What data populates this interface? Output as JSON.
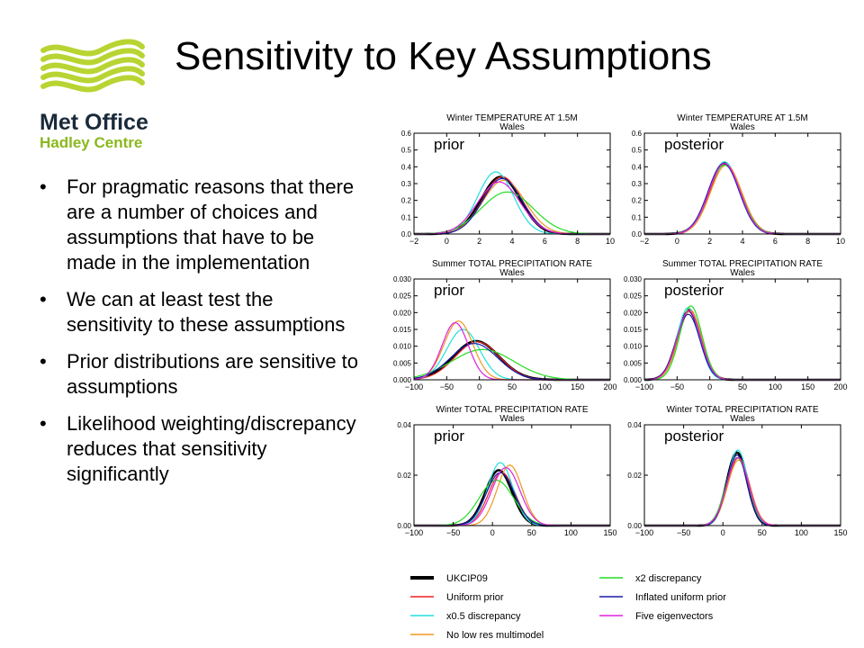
{
  "slide": {
    "title": "Sensitivity to Key Assumptions",
    "logo": {
      "line1": "Met Office",
      "line2": "Hadley Centre",
      "wave_color": "#b8d432",
      "text_color": "#1a2a3a",
      "sub_color": "#8ab81e"
    },
    "bullets": [
      "For pragmatic reasons that there are a number of choices and assumptions that have to be made in the implementation",
      "We can at least test the sensitivity to these assumptions",
      "Prior distributions are sensitive to assumptions",
      "Likelihood weighting/discrepancy reduces that sensitivity significantly"
    ]
  },
  "legend": [
    {
      "label": "UKCIP09",
      "color": "#000000",
      "bold": true
    },
    {
      "label": "x2 discrepancy",
      "color": "#22dd22"
    },
    {
      "label": "Uniform prior",
      "color": "#ee2222"
    },
    {
      "label": "Inflated uniform prior",
      "color": "#1a1aaa"
    },
    {
      "label": "x0.5 discrepancy",
      "color": "#22dddd"
    },
    {
      "label": "Five eigenvectors",
      "color": "#dd22dd"
    },
    {
      "label": "No low res multimodel",
      "color": "#ee9922"
    }
  ],
  "chart_data": [
    {
      "type": "line",
      "panel_label": "prior",
      "title": "Winter TEMPERATURE AT 1.5M",
      "subtitle": "Wales",
      "xlim": [
        -2,
        10
      ],
      "ylim": [
        0,
        0.6
      ],
      "xticks": [
        "−2",
        "0",
        "2",
        "4",
        "6",
        "8",
        "10"
      ],
      "yticks": [
        "0.0",
        "0.1",
        "0.2",
        "0.3",
        "0.4",
        "0.5",
        "0.6"
      ],
      "series": [
        {
          "name": "UKCIP09",
          "mean": 3.3,
          "sd": 1.2,
          "amp": 0.34
        },
        {
          "name": "Uniform prior",
          "mean": 3.4,
          "sd": 1.2,
          "amp": 0.34
        },
        {
          "name": "x0.5 discrepancy",
          "mean": 3.0,
          "sd": 1.1,
          "amp": 0.37
        },
        {
          "name": "No low res multimodel",
          "mean": 3.5,
          "sd": 1.3,
          "amp": 0.32
        },
        {
          "name": "x2 discrepancy",
          "mean": 3.7,
          "sd": 1.6,
          "amp": 0.25
        },
        {
          "name": "Inflated uniform prior",
          "mean": 3.4,
          "sd": 1.2,
          "amp": 0.33
        },
        {
          "name": "Five eigenvectors",
          "mean": 3.2,
          "sd": 1.3,
          "amp": 0.31
        }
      ]
    },
    {
      "type": "line",
      "panel_label": "posterior",
      "title": "Winter TEMPERATURE AT 1.5M",
      "subtitle": "Wales",
      "xlim": [
        -2,
        10
      ],
      "ylim": [
        0,
        0.6
      ],
      "xticks": [
        "−2",
        "0",
        "2",
        "4",
        "6",
        "8",
        "10"
      ],
      "yticks": [
        "0.0",
        "0.1",
        "0.2",
        "0.3",
        "0.4",
        "0.5",
        "0.6"
      ],
      "series": [
        {
          "name": "UKCIP09",
          "mean": 2.9,
          "sd": 0.95,
          "amp": 0.42
        },
        {
          "name": "Uniform prior",
          "mean": 2.95,
          "sd": 0.95,
          "amp": 0.42
        },
        {
          "name": "x0.5 discrepancy",
          "mean": 2.9,
          "sd": 0.93,
          "amp": 0.43
        },
        {
          "name": "No low res multimodel",
          "mean": 3.0,
          "sd": 0.96,
          "amp": 0.41
        },
        {
          "name": "x2 discrepancy",
          "mean": 2.9,
          "sd": 0.98,
          "amp": 0.41
        },
        {
          "name": "Inflated uniform prior",
          "mean": 2.85,
          "sd": 0.95,
          "amp": 0.42
        },
        {
          "name": "Five eigenvectors",
          "mean": 2.9,
          "sd": 0.95,
          "amp": 0.42
        }
      ]
    },
    {
      "type": "line",
      "panel_label": "prior",
      "title": "Summer TOTAL PRECIPITATION RATE",
      "subtitle": "Wales",
      "xlim": [
        -100,
        200
      ],
      "ylim": [
        0,
        0.03
      ],
      "xticks": [
        "−100",
        "−50",
        "0",
        "50",
        "100",
        "150",
        "200"
      ],
      "yticks": [
        "0.000",
        "0.005",
        "0.010",
        "0.015",
        "0.020",
        "0.025",
        "0.030"
      ],
      "series": [
        {
          "name": "UKCIP09",
          "mean": -5,
          "sd": 35,
          "amp": 0.0115
        },
        {
          "name": "Uniform prior",
          "mean": -3,
          "sd": 34,
          "amp": 0.0113
        },
        {
          "name": "x0.5 discrepancy",
          "mean": -25,
          "sd": 25,
          "amp": 0.015
        },
        {
          "name": "No low res multimodel",
          "mean": -32,
          "sd": 22,
          "amp": 0.0175
        },
        {
          "name": "x2 discrepancy",
          "mean": 5,
          "sd": 48,
          "amp": 0.009
        },
        {
          "name": "Inflated uniform prior",
          "mean": -8,
          "sd": 36,
          "amp": 0.0108
        },
        {
          "name": "Five eigenvectors",
          "mean": -37,
          "sd": 20,
          "amp": 0.017
        }
      ]
    },
    {
      "type": "line",
      "panel_label": "posterior",
      "title": "Summer TOTAL PRECIPITATION RATE",
      "subtitle": "Wales",
      "xlim": [
        -100,
        200
      ],
      "ylim": [
        0,
        0.03
      ],
      "xticks": [
        "−100",
        "−50",
        "0",
        "50",
        "100",
        "150",
        "200"
      ],
      "yticks": [
        "0.000",
        "0.005",
        "0.010",
        "0.015",
        "0.020",
        "0.025",
        "0.030"
      ],
      "series": [
        {
          "name": "UKCIP09",
          "mean": -32,
          "sd": 18,
          "amp": 0.0205
        },
        {
          "name": "Uniform prior",
          "mean": -31,
          "sd": 18,
          "amp": 0.021
        },
        {
          "name": "x0.5 discrepancy",
          "mean": -33,
          "sd": 17,
          "amp": 0.0215
        },
        {
          "name": "No low res multimodel",
          "mean": -30,
          "sd": 18,
          "amp": 0.0205
        },
        {
          "name": "x2 discrepancy",
          "mean": -29,
          "sd": 17,
          "amp": 0.022
        },
        {
          "name": "Inflated uniform prior",
          "mean": -33,
          "sd": 18,
          "amp": 0.0195
        },
        {
          "name": "Five eigenvectors",
          "mean": -32,
          "sd": 18,
          "amp": 0.0205
        }
      ]
    },
    {
      "type": "line",
      "panel_label": "prior",
      "title": "Winter TOTAL PRECIPITATION RATE",
      "subtitle": "Wales",
      "xlim": [
        -100,
        150
      ],
      "ylim": [
        0,
        0.04
      ],
      "xticks": [
        "−100",
        "−50",
        "0",
        "50",
        "100",
        "150"
      ],
      "yticks": [
        "0.00",
        "0.02",
        "0.04"
      ],
      "series": [
        {
          "name": "UKCIP09",
          "mean": 8,
          "sd": 17,
          "amp": 0.022
        },
        {
          "name": "Uniform prior",
          "mean": 12,
          "sd": 17,
          "amp": 0.021
        },
        {
          "name": "x0.5 discrepancy",
          "mean": 10,
          "sd": 16,
          "amp": 0.025
        },
        {
          "name": "No low res multimodel",
          "mean": 22,
          "sd": 16,
          "amp": 0.024
        },
        {
          "name": "x2 discrepancy",
          "mean": 5,
          "sd": 22,
          "amp": 0.018
        },
        {
          "name": "Inflated uniform prior",
          "mean": 10,
          "sd": 18,
          "amp": 0.021
        },
        {
          "name": "Five eigenvectors",
          "mean": 17,
          "sd": 18,
          "amp": 0.023
        }
      ]
    },
    {
      "type": "line",
      "panel_label": "posterior",
      "title": "Winter TOTAL PRECIPITATION RATE",
      "subtitle": "Wales",
      "xlim": [
        -100,
        150
      ],
      "ylim": [
        0,
        0.04
      ],
      "xticks": [
        "−100",
        "−50",
        "0",
        "50",
        "100",
        "150"
      ],
      "yticks": [
        "0.00",
        "0.02",
        "0.04"
      ],
      "series": [
        {
          "name": "UKCIP09",
          "mean": 18,
          "sd": 13,
          "amp": 0.029
        },
        {
          "name": "Uniform prior",
          "mean": 20,
          "sd": 14,
          "amp": 0.027
        },
        {
          "name": "x0.5 discrepancy",
          "mean": 19,
          "sd": 13,
          "amp": 0.03
        },
        {
          "name": "No low res multimodel",
          "mean": 20,
          "sd": 14,
          "amp": 0.026
        },
        {
          "name": "x2 discrepancy",
          "mean": 18,
          "sd": 14,
          "amp": 0.027
        },
        {
          "name": "Inflated uniform prior",
          "mean": 18,
          "sd": 13,
          "amp": 0.028
        },
        {
          "name": "Five eigenvectors",
          "mean": 19,
          "sd": 14,
          "amp": 0.027
        }
      ]
    }
  ]
}
